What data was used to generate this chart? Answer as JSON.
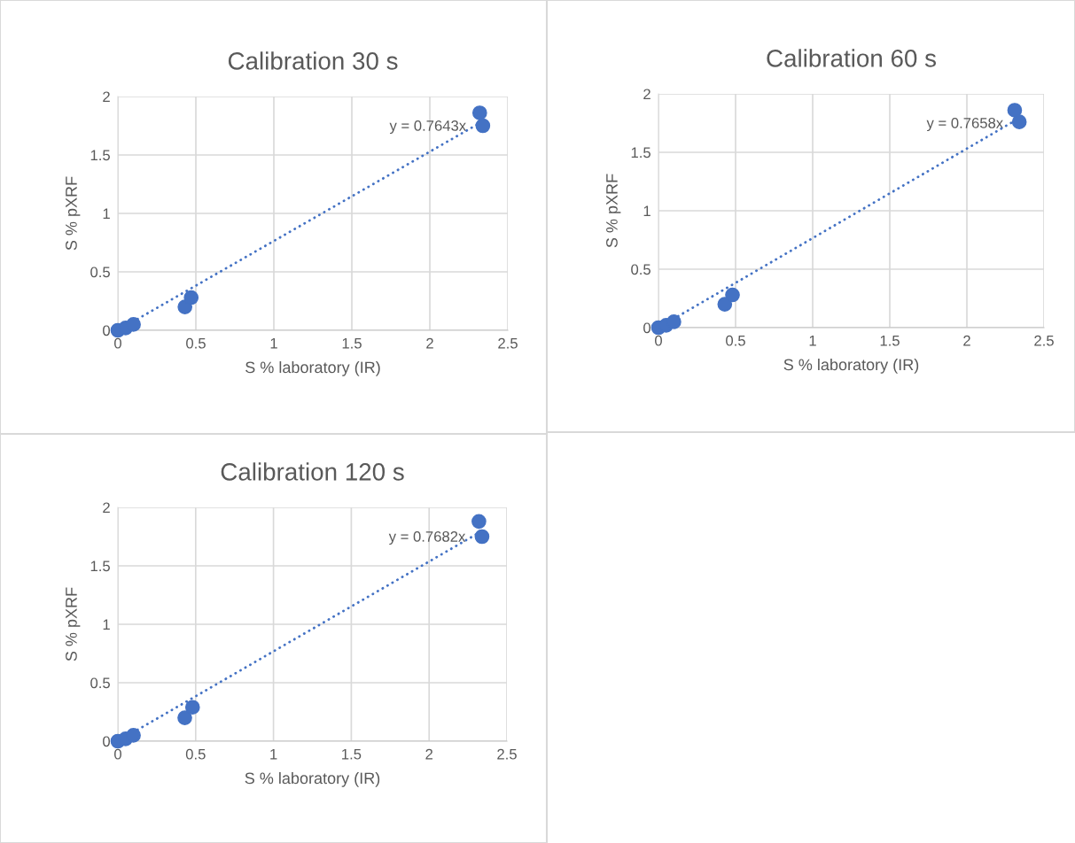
{
  "chart_data": [
    {
      "type": "scatter",
      "title": "Calibration 30 s",
      "xlabel": "S % laboratory (IR)",
      "ylabel": "S % pXRF",
      "xlim": [
        0,
        2.5
      ],
      "xticks": [
        0,
        0.5,
        1,
        1.5,
        2,
        2.5
      ],
      "ylim": [
        0,
        2
      ],
      "yticks": [
        0,
        0.5,
        1,
        1.5,
        2
      ],
      "grid": true,
      "marker": "circle",
      "annotations": [
        "y = 0.7643x"
      ],
      "series": [
        {
          "color": "#4472c4",
          "x": [
            0,
            0.05,
            0.1,
            0.43,
            0.47,
            2.32,
            2.34
          ],
          "values": [
            0,
            0.02,
            0.05,
            0.2,
            0.28,
            1.86,
            1.75
          ]
        },
        {
          "type": "line",
          "line_style": "dotted",
          "marker": "none",
          "color": "#4472c4",
          "x": [
            0,
            2.34
          ],
          "values": [
            0,
            1.788
          ]
        }
      ]
    },
    {
      "type": "scatter",
      "title": "Calibration 60 s",
      "xlabel": "S % laboratory (IR)",
      "ylabel": "S % pXRF",
      "xlim": [
        0,
        2.5
      ],
      "xticks": [
        0,
        0.5,
        1,
        1.5,
        2,
        2.5
      ],
      "ylim": [
        0,
        2
      ],
      "yticks": [
        0,
        0.5,
        1,
        1.5,
        2
      ],
      "grid": true,
      "marker": "circle",
      "annotations": [
        "y = 0.7658x"
      ],
      "series": [
        {
          "color": "#4472c4",
          "x": [
            0,
            0.05,
            0.1,
            0.43,
            0.48,
            2.31,
            2.34
          ],
          "values": [
            0,
            0.02,
            0.05,
            0.2,
            0.28,
            1.86,
            1.76
          ]
        },
        {
          "type": "line",
          "line_style": "dotted",
          "marker": "none",
          "color": "#4472c4",
          "x": [
            0,
            2.34
          ],
          "values": [
            0,
            1.792
          ]
        }
      ]
    },
    {
      "type": "scatter",
      "title": "Calibration 120 s",
      "xlabel": "S % laboratory (IR)",
      "ylabel": "S % pXRF",
      "xlim": [
        0,
        2.5
      ],
      "xticks": [
        0,
        0.5,
        1,
        1.5,
        2,
        2.5
      ],
      "ylim": [
        0,
        2
      ],
      "yticks": [
        0,
        0.5,
        1,
        1.5,
        2
      ],
      "grid": true,
      "marker": "circle",
      "annotations": [
        "y = 0.7682x"
      ],
      "series": [
        {
          "color": "#4472c4",
          "x": [
            0,
            0.05,
            0.1,
            0.43,
            0.48,
            2.32,
            2.34
          ],
          "values": [
            0,
            0.02,
            0.05,
            0.2,
            0.29,
            1.88,
            1.75
          ]
        },
        {
          "type": "line",
          "line_style": "dotted",
          "marker": "none",
          "color": "#4472c4",
          "x": [
            0,
            2.34
          ],
          "values": [
            0,
            1.798
          ]
        }
      ]
    }
  ]
}
